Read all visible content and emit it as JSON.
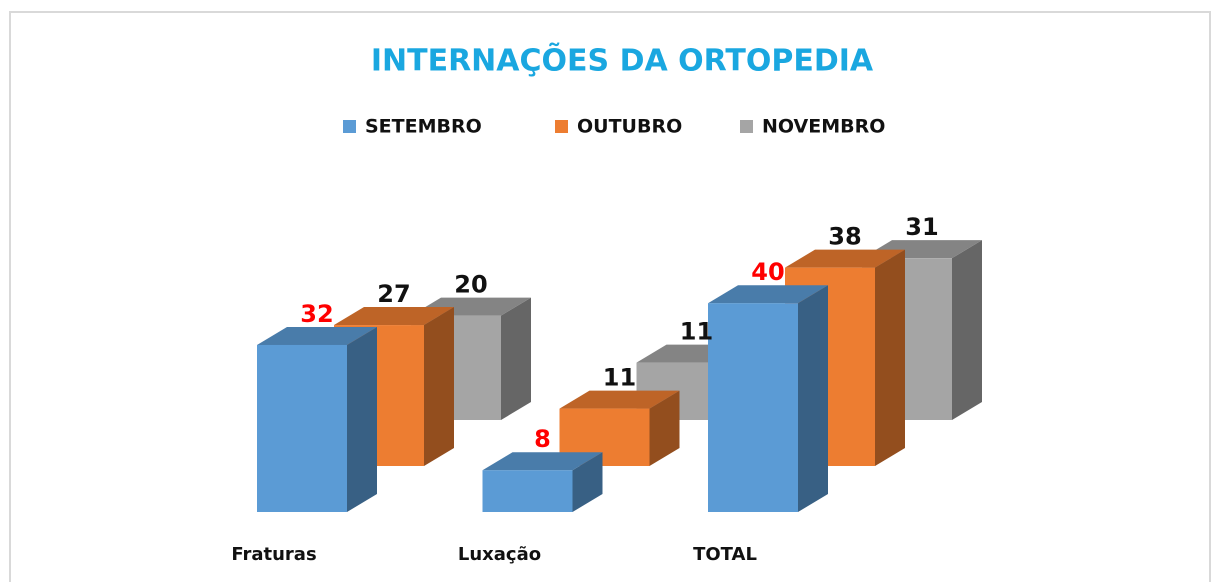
{
  "chart_data": {
    "type": "bar3d",
    "title": "INTERNAÇÕES DA ORTOPEDIA",
    "categories": [
      "Fraturas",
      "Luxação",
      "TOTAL"
    ],
    "series": [
      {
        "name": "SETEMBRO",
        "color": "#5b9bd5",
        "label_color": "#ff0000",
        "values": [
          32,
          8,
          40
        ]
      },
      {
        "name": "OUTUBRO",
        "color": "#ed7d31",
        "label_color": "#111111",
        "values": [
          27,
          11,
          38
        ]
      },
      {
        "name": "NOVEMBRO",
        "color": "#a5a5a5",
        "label_color": "#111111",
        "values": [
          20,
          11,
          31
        ]
      }
    ],
    "legend": "top"
  }
}
